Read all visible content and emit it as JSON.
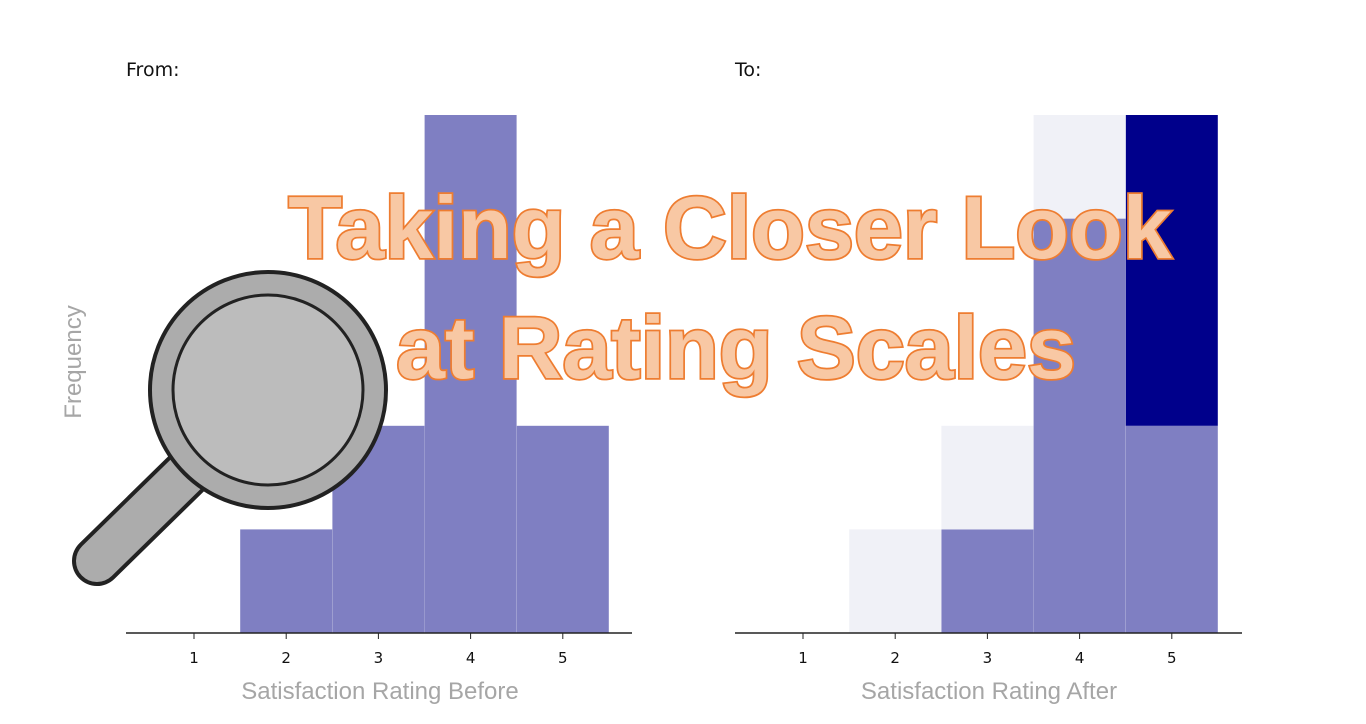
{
  "title": {
    "line1": "Taking a Closer Look",
    "line2": "at Rating Scales"
  },
  "y_axis_label": "Frequency",
  "colors": {
    "bar_light": "#7f7fc2",
    "bar_dark": "#00008b",
    "bar_faint": "#f0f1f7",
    "title_fill": "#f8c8a4",
    "title_stroke": "#ee7d31",
    "axis_text": "#a6a6a6"
  },
  "icons": {
    "magnifier": "magnifying-glass-icon"
  },
  "chart_data": [
    {
      "type": "bar",
      "panel_label": "From:",
      "xlabel": "Satisfaction Rating Before",
      "ylabel": "Frequency",
      "categories": [
        "1",
        "2",
        "3",
        "4",
        "5"
      ],
      "values": [
        0,
        1,
        2,
        5,
        2
      ],
      "ylim": [
        0,
        5
      ],
      "grid": false
    },
    {
      "type": "bar",
      "panel_label": "To:",
      "xlabel": "Satisfaction Rating After",
      "categories": [
        "1",
        "2",
        "3",
        "4",
        "5"
      ],
      "series": [
        {
          "values": [
            0,
            0,
            1,
            4,
            2
          ],
          "color": "#7f7fc2"
        },
        {
          "values": [
            0,
            0,
            0,
            0,
            3
          ],
          "color": "#00008b"
        },
        {
          "values": [
            0,
            1,
            1,
            1,
            0
          ],
          "color": "#f0f1f7"
        }
      ],
      "stacked": true,
      "ylim": [
        0,
        5
      ],
      "grid": false
    }
  ]
}
